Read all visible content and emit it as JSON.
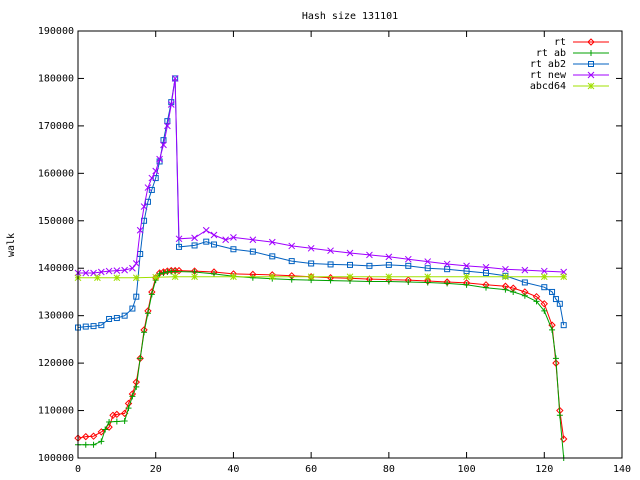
{
  "chart_data": {
    "type": "line",
    "title": "Hash size 131101",
    "xlabel": "",
    "ylabel": "walk",
    "xlim": [
      0,
      140
    ],
    "ylim": [
      100000,
      190000
    ],
    "x_ticks": [
      0,
      20,
      40,
      60,
      80,
      100,
      120,
      140
    ],
    "y_ticks": [
      100000,
      110000,
      120000,
      130000,
      140000,
      150000,
      160000,
      170000,
      180000,
      190000
    ],
    "x_tick_labels": [
      "0",
      "20",
      "40",
      "60",
      "80",
      "100",
      "120",
      "140"
    ],
    "y_tick_labels": [
      "100000",
      "110000",
      "120000",
      "130000",
      "140000",
      "150000",
      "160000",
      "170000",
      "180000",
      "190000"
    ],
    "grid": false,
    "legend_position": "top-right",
    "series": [
      {
        "name": "rt",
        "color": "#ff0000",
        "marker": "diamond",
        "x": [
          0,
          2,
          4,
          6,
          8,
          9,
          10,
          12,
          13,
          14,
          15,
          16,
          17,
          18,
          19,
          20,
          21,
          22,
          23,
          24,
          25,
          26,
          30,
          35,
          40,
          45,
          50,
          55,
          60,
          65,
          70,
          75,
          80,
          85,
          90,
          95,
          100,
          105,
          110,
          112,
          115,
          118,
          120,
          122,
          123,
          124,
          125
        ],
        "y": [
          104200,
          104500,
          104600,
          105500,
          106500,
          109000,
          109200,
          109400,
          111500,
          113500,
          116000,
          121000,
          127000,
          131000,
          135000,
          138000,
          139000,
          139200,
          139400,
          139500,
          139500,
          139500,
          139400,
          139200,
          138800,
          138700,
          138600,
          138400,
          138200,
          138000,
          137900,
          137700,
          137600,
          137500,
          137300,
          137100,
          136900,
          136500,
          136200,
          135800,
          135000,
          134000,
          132500,
          128000,
          120000,
          110000,
          104000
        ]
      },
      {
        "name": "rt ab",
        "color": "#00a000",
        "marker": "plus",
        "x": [
          0,
          2,
          4,
          6,
          7,
          8,
          10,
          12,
          13,
          14,
          15,
          16,
          17,
          18,
          19,
          20,
          21,
          22,
          23,
          24,
          25,
          30,
          35,
          40,
          45,
          50,
          55,
          60,
          65,
          70,
          75,
          80,
          85,
          90,
          95,
          100,
          105,
          110,
          112,
          115,
          118,
          120,
          122,
          123,
          124,
          125
        ],
        "y": [
          102800,
          102800,
          102800,
          103500,
          106000,
          107600,
          107700,
          107800,
          110500,
          113000,
          115000,
          121000,
          126500,
          130500,
          134500,
          137500,
          138800,
          139000,
          139200,
          139300,
          139300,
          139200,
          138800,
          138300,
          138000,
          137800,
          137600,
          137500,
          137400,
          137300,
          137200,
          137200,
          137100,
          137000,
          136800,
          136500,
          135900,
          135500,
          135000,
          134200,
          133000,
          131000,
          127000,
          121000,
          109000,
          100000
        ]
      },
      {
        "name": "rt ab2",
        "color": "#0060c0",
        "marker": "square",
        "x": [
          0,
          2,
          4,
          6,
          8,
          10,
          12,
          14,
          15,
          16,
          17,
          18,
          19,
          20,
          21,
          22,
          23,
          24,
          25,
          26,
          30,
          33,
          35,
          40,
          45,
          50,
          55,
          60,
          65,
          70,
          75,
          80,
          85,
          90,
          95,
          100,
          105,
          110,
          115,
          120,
          122,
          123,
          124,
          125
        ],
        "y": [
          127500,
          127700,
          127800,
          128000,
          129300,
          129500,
          130000,
          131500,
          134000,
          143000,
          150000,
          154000,
          156500,
          159000,
          162500,
          167000,
          171000,
          175000,
          180000,
          144500,
          144800,
          145600,
          145000,
          144000,
          143500,
          142500,
          141500,
          141000,
          140800,
          140700,
          140500,
          140700,
          140500,
          140000,
          139800,
          139400,
          139000,
          138400,
          137000,
          136000,
          135000,
          133500,
          132500,
          128000
        ]
      },
      {
        "name": "rt new",
        "color": "#a000ff",
        "marker": "cross",
        "x": [
          0,
          2,
          4,
          6,
          8,
          10,
          12,
          14,
          15,
          16,
          17,
          18,
          19,
          20,
          21,
          22,
          23,
          24,
          25,
          26,
          30,
          33,
          35,
          38,
          40,
          45,
          50,
          55,
          60,
          65,
          70,
          75,
          80,
          85,
          90,
          95,
          100,
          105,
          110,
          115,
          120,
          125
        ],
        "y": [
          139000,
          139000,
          139000,
          139200,
          139400,
          139500,
          139600,
          140000,
          141000,
          148000,
          153000,
          157000,
          159000,
          160500,
          163000,
          166000,
          170000,
          174500,
          180000,
          146200,
          146400,
          148000,
          147000,
          146000,
          146500,
          146000,
          145500,
          144700,
          144200,
          143700,
          143200,
          142800,
          142400,
          141900,
          141400,
          140900,
          140500,
          140200,
          139800,
          139600,
          139400,
          139200
        ]
      },
      {
        "name": "abcd64",
        "color": "#a0e000",
        "marker": "star",
        "x": [
          0,
          5,
          10,
          15,
          20,
          25,
          30,
          40,
          50,
          60,
          70,
          80,
          90,
          100,
          110,
          120,
          125
        ],
        "y": [
          138000,
          138000,
          138000,
          138000,
          138100,
          138200,
          138200,
          138200,
          138200,
          138200,
          138200,
          138200,
          138200,
          138200,
          138200,
          138200,
          138200
        ]
      }
    ]
  }
}
